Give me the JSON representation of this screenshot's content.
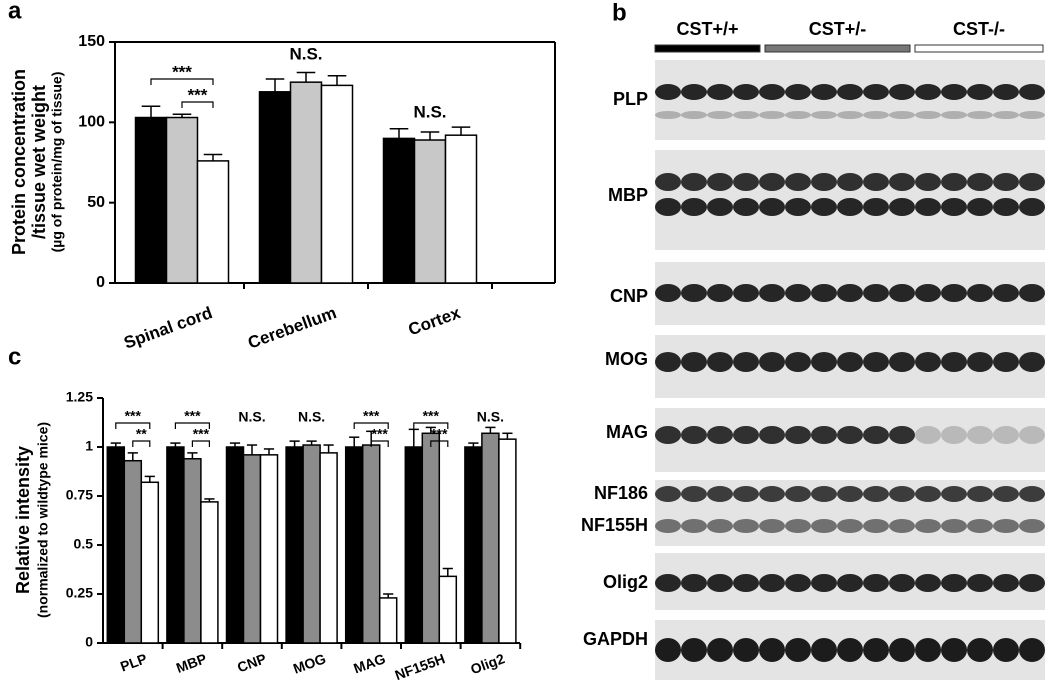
{
  "panel_labels": [
    "a",
    "b",
    "c"
  ],
  "chart_data": [
    {
      "type": "bar",
      "ylabel": [
        "Protein concentration",
        "/tissue wet weight"
      ],
      "ylabel_note": "(µg of protein/mg of tissue)",
      "categories": [
        "Spinal cord",
        "Cerebellum",
        "Cortex"
      ],
      "series": [
        {
          "color": "#000000",
          "values": [
            103,
            119,
            90
          ],
          "errors": [
            7,
            8,
            6
          ]
        },
        {
          "color": "#c8c8c8",
          "values": [
            103,
            125,
            89
          ],
          "errors": [
            2,
            6,
            5
          ]
        },
        {
          "color": "#ffffff",
          "values": [
            76,
            123,
            92
          ],
          "errors": [
            4,
            6,
            5
          ]
        }
      ],
      "ylim": [
        0,
        150
      ],
      "yticks": [
        0,
        50,
        100,
        150
      ],
      "annotations": [
        "***",
        "***",
        "N.S.",
        "N.S."
      ]
    },
    {
      "type": "bar",
      "ylabel": [
        "Relative intensity"
      ],
      "ylabel_note": "(normalized to wildtype mice)",
      "categories": [
        "PLP",
        "MBP",
        "CNP",
        "MOG",
        "MAG",
        "NF155H",
        "Olig2"
      ],
      "series": [
        {
          "color": "#000000",
          "values": [
            1.0,
            1.0,
            1.0,
            1.0,
            1.0,
            1.0,
            1.0
          ],
          "errors": [
            0.02,
            0.02,
            0.02,
            0.03,
            0.05,
            0.09,
            0.02
          ]
        },
        {
          "color": "#8c8c8c",
          "values": [
            0.93,
            0.94,
            0.96,
            1.01,
            1.01,
            1.07,
            1.07
          ],
          "errors": [
            0.04,
            0.03,
            0.05,
            0.02,
            0.07,
            0.03,
            0.03
          ]
        },
        {
          "color": "#ffffff",
          "values": [
            0.82,
            0.72,
            0.96,
            0.97,
            0.23,
            0.34,
            1.04
          ],
          "errors": [
            0.03,
            0.015,
            0.03,
            0.04,
            0.02,
            0.04,
            0.03
          ]
        }
      ],
      "ylim": [
        0,
        1.25
      ],
      "yticks": [
        0,
        0.25,
        0.5,
        0.75,
        1,
        1.25
      ],
      "annotations": [
        "***",
        "**",
        "***",
        "***",
        "N.S.",
        "N.S.",
        "***",
        "***",
        "***",
        "***",
        "N.S."
      ]
    }
  ],
  "blot": {
    "groups": [
      "CST+/+",
      "CST+/-",
      "CST-/-"
    ],
    "rows": [
      "PLP",
      "MBP",
      "CNP",
      "MOG",
      "MAG",
      "NF186",
      "NF155H",
      "Olig2",
      "GAPDH"
    ]
  }
}
